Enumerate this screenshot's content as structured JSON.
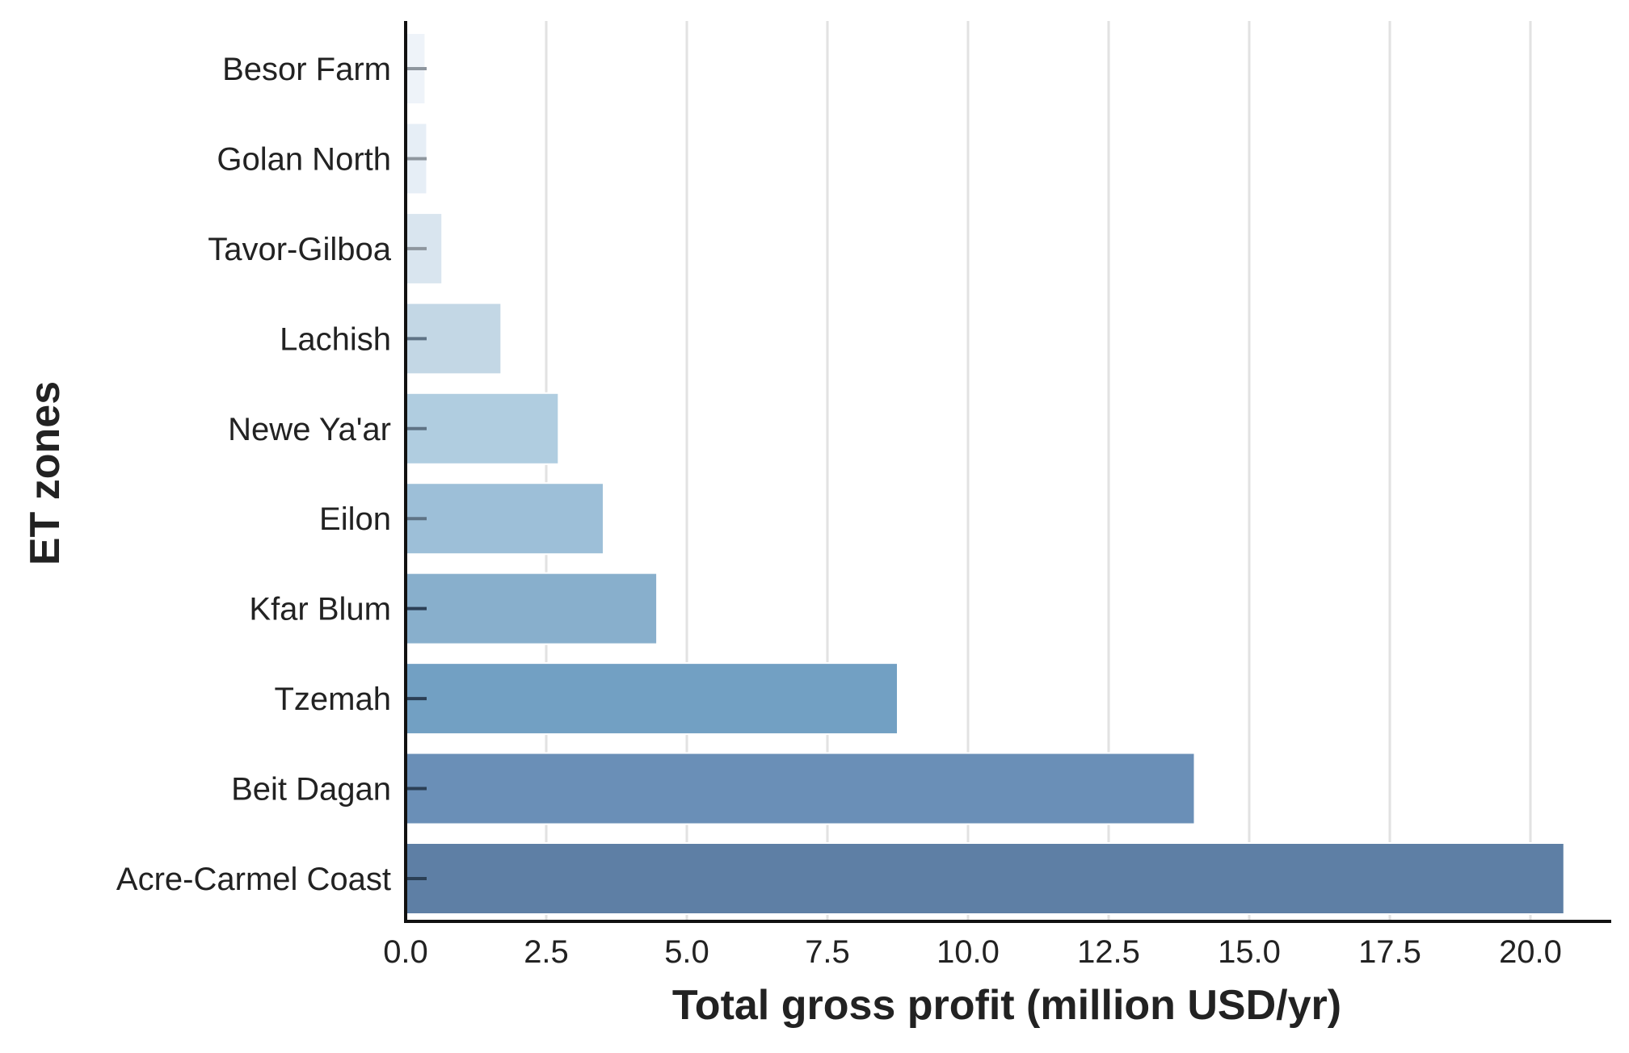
{
  "chart_data": {
    "type": "bar",
    "orientation": "horizontal",
    "title": "",
    "xlabel": "Total gross profit (million USD/yr)",
    "ylabel": "ET zones",
    "categories": [
      "Besor Farm",
      "Golan North",
      "Tavor-Gilboa",
      "Lachish",
      "Newe Ya'ar",
      "Eilon",
      "Kfar Blum",
      "Tzemah",
      "Beit Dagan",
      "Acre-Carmel Coast"
    ],
    "values": [
      0.35,
      0.38,
      0.65,
      1.7,
      2.72,
      3.52,
      4.47,
      8.75,
      14.03,
      20.6
    ],
    "colors": [
      "#eef3f9",
      "#e6eef6",
      "#d9e5ef",
      "#c3d7e5",
      "#b0cde0",
      "#9dbfd8",
      "#88afcc",
      "#72a0c3",
      "#6a8fb7",
      "#5e7fa5"
    ],
    "xlim": [
      0,
      21.7
    ],
    "xticks": [
      0.0,
      2.5,
      5.0,
      7.5,
      10.0,
      12.5,
      15.0,
      17.5,
      20.0
    ],
    "xtick_labels": [
      "0.0",
      "2.5",
      "5.0",
      "7.5",
      "10.0",
      "12.5",
      "15.0",
      "17.5",
      "20.0"
    ],
    "grid": "vertical",
    "legend": "none"
  }
}
